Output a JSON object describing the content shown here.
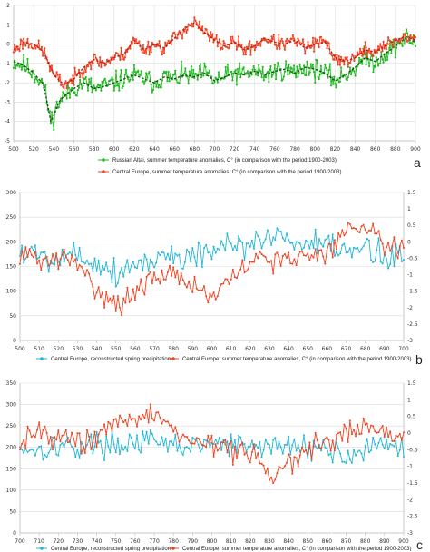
{
  "colors": {
    "green": "#22bb22",
    "orange": "#ee4422",
    "cyan": "#22b7d6",
    "grid": "#d9d9d9",
    "axis": "#bdbdbd",
    "dark_smooth": "#1a4d1a",
    "red_smooth": "#c81414"
  },
  "chart_data": [
    {
      "type": "line",
      "panel_label": "a",
      "x_ticks": [
        "500",
        "520",
        "540",
        "560",
        "580",
        "600",
        "620",
        "640",
        "660",
        "680",
        "700",
        "720",
        "740",
        "760",
        "780",
        "800",
        "820",
        "840",
        "860",
        "880",
        "900"
      ],
      "xlim": [
        500,
        900
      ],
      "ylim": [
        -5,
        2
      ],
      "y_ticks": [
        "-5",
        "-4",
        "-3",
        "-2",
        "-1",
        "0",
        "1",
        "2"
      ],
      "grid": true,
      "series": [
        {
          "name": "Russian Altai, summer temperature anomalies, C° (in comparison with the period 1900-2003)",
          "color": "#22bb22",
          "anchors": [
            [
              500,
              -0.9
            ],
            [
              510,
              -1.1
            ],
            [
              520,
              -1.5
            ],
            [
              530,
              -2.1
            ],
            [
              537,
              -4.0
            ],
            [
              540,
              -3.7
            ],
            [
              545,
              -3.0
            ],
            [
              550,
              -2.7
            ],
            [
              560,
              -2.3
            ],
            [
              570,
              -2.0
            ],
            [
              580,
              -2.3
            ],
            [
              590,
              -2.2
            ],
            [
              600,
              -2.0
            ],
            [
              610,
              -1.8
            ],
            [
              620,
              -1.6
            ],
            [
              630,
              -1.8
            ],
            [
              640,
              -2.0
            ],
            [
              650,
              -1.7
            ],
            [
              660,
              -1.8
            ],
            [
              670,
              -1.6
            ],
            [
              680,
              -1.7
            ],
            [
              690,
              -1.5
            ],
            [
              700,
              -1.9
            ],
            [
              710,
              -1.7
            ],
            [
              720,
              -1.5
            ],
            [
              730,
              -1.6
            ],
            [
              740,
              -1.4
            ],
            [
              750,
              -1.6
            ],
            [
              760,
              -1.4
            ],
            [
              770,
              -1.3
            ],
            [
              780,
              -1.5
            ],
            [
              790,
              -1.2
            ],
            [
              800,
              -1.3
            ],
            [
              810,
              -1.5
            ],
            [
              820,
              -1.9
            ],
            [
              830,
              -1.6
            ],
            [
              840,
              -1.2
            ],
            [
              850,
              -0.7
            ],
            [
              860,
              -0.9
            ],
            [
              870,
              -0.5
            ],
            [
              880,
              -0.1
            ],
            [
              890,
              0.3
            ],
            [
              900,
              0.1
            ]
          ],
          "noise": 0.8,
          "seed": 11,
          "smooth": {
            "name": "",
            "color": "#1a4d1a"
          }
        },
        {
          "name": "Central Europe, summer temperature anomalies, C° (in comparison with the period 1900-2003)",
          "color": "#ee4422",
          "anchors": [
            [
              500,
              -0.3
            ],
            [
              510,
              0.1
            ],
            [
              520,
              0.0
            ],
            [
              530,
              -0.4
            ],
            [
              540,
              -1.6
            ],
            [
              550,
              -2.1
            ],
            [
              560,
              -1.8
            ],
            [
              570,
              -1.2
            ],
            [
              580,
              -0.8
            ],
            [
              590,
              -1.0
            ],
            [
              600,
              -0.7
            ],
            [
              610,
              -0.5
            ],
            [
              620,
              0.2
            ],
            [
              630,
              -0.3
            ],
            [
              640,
              0.0
            ],
            [
              650,
              -0.2
            ],
            [
              660,
              0.3
            ],
            [
              670,
              0.8
            ],
            [
              680,
              1.1
            ],
            [
              690,
              0.6
            ],
            [
              700,
              0.2
            ],
            [
              710,
              -0.1
            ],
            [
              720,
              0.1
            ],
            [
              730,
              -0.3
            ],
            [
              740,
              -0.1
            ],
            [
              750,
              0.3
            ],
            [
              760,
              0.1
            ],
            [
              770,
              0.0
            ],
            [
              780,
              0.2
            ],
            [
              790,
              -0.2
            ],
            [
              800,
              0.0
            ],
            [
              810,
              0.1
            ],
            [
              820,
              -0.7
            ],
            [
              830,
              -0.9
            ],
            [
              840,
              -0.7
            ],
            [
              850,
              -0.3
            ],
            [
              860,
              -0.4
            ],
            [
              870,
              -0.1
            ],
            [
              880,
              0.2
            ],
            [
              890,
              0.4
            ],
            [
              900,
              0.2
            ]
          ],
          "noise": 0.55,
          "seed": 23,
          "smooth": {
            "name": "",
            "color": "#c81414"
          }
        }
      ]
    },
    {
      "type": "line",
      "panel_label": "b",
      "x_ticks": [
        "500",
        "510",
        "520",
        "530",
        "540",
        "550",
        "560",
        "570",
        "580",
        "590",
        "600",
        "610",
        "620",
        "630",
        "640",
        "650",
        "660",
        "670",
        "680",
        "690",
        "700"
      ],
      "xlim": [
        500,
        700
      ],
      "ylim_left": [
        0,
        300
      ],
      "y_ticks_left": [
        "0",
        "50",
        "100",
        "150",
        "200",
        "250",
        "300"
      ],
      "ylim_right": [
        -3,
        1.5
      ],
      "y_ticks_right": [
        "-3",
        "-2.5",
        "-2",
        "-1.5",
        "-1",
        "-0.5",
        "0",
        "0.5",
        "1",
        "1.5"
      ],
      "grid": true,
      "series": [
        {
          "name": "Central Europe, reconstructed spring precipitation",
          "color": "#22b7d6",
          "axis": "left",
          "anchors": [
            [
              500,
              180
            ],
            [
              510,
              175
            ],
            [
              520,
              170
            ],
            [
              530,
              175
            ],
            [
              540,
              160
            ],
            [
              550,
              135
            ],
            [
              560,
              155
            ],
            [
              570,
              165
            ],
            [
              580,
              170
            ],
            [
              590,
              175
            ],
            [
              600,
              180
            ],
            [
              610,
              185
            ],
            [
              620,
              195
            ],
            [
              630,
              215
            ],
            [
              640,
              205
            ],
            [
              650,
              195
            ],
            [
              660,
              185
            ],
            [
              670,
              180
            ],
            [
              680,
              185
            ],
            [
              690,
              175
            ],
            [
              700,
              170
            ]
          ],
          "noise": 45,
          "seed": 5
        },
        {
          "name": "Central Europe, summer temperature anomalies, C° (in comparison with the period 1900-2003)",
          "color": "#ee4422",
          "axis": "right",
          "anchors": [
            [
              500,
              -0.3
            ],
            [
              510,
              -0.6
            ],
            [
              520,
              -0.5
            ],
            [
              530,
              -0.7
            ],
            [
              540,
              -1.4
            ],
            [
              550,
              -1.9
            ],
            [
              560,
              -1.6
            ],
            [
              570,
              -1.1
            ],
            [
              580,
              -0.9
            ],
            [
              590,
              -1.3
            ],
            [
              600,
              -1.7
            ],
            [
              610,
              -1.2
            ],
            [
              620,
              -0.6
            ],
            [
              630,
              -0.5
            ],
            [
              640,
              -0.6
            ],
            [
              650,
              -0.4
            ],
            [
              660,
              -0.3
            ],
            [
              670,
              0.3
            ],
            [
              680,
              0.6
            ],
            [
              690,
              0.0
            ],
            [
              700,
              -0.3
            ]
          ],
          "noise": 0.5,
          "seed": 31
        }
      ]
    },
    {
      "type": "line",
      "panel_label": "c",
      "x_ticks": [
        "700",
        "710",
        "720",
        "730",
        "740",
        "750",
        "760",
        "770",
        "780",
        "790",
        "800",
        "810",
        "820",
        "830",
        "840",
        "850",
        "860",
        "870",
        "880",
        "890",
        "900"
      ],
      "xlim": [
        700,
        900
      ],
      "ylim_left": [
        0,
        350
      ],
      "y_ticks_left": [
        "0",
        "50",
        "100",
        "150",
        "200",
        "250",
        "300",
        "350"
      ],
      "ylim_right": [
        -3,
        1.5
      ],
      "y_ticks_right": [
        "-3",
        "-2.5",
        "-2",
        "-1.5",
        "-1",
        "-0.5",
        "0",
        "0.5",
        "1",
        "1.5"
      ],
      "grid": true,
      "series": [
        {
          "name": "Central Europe, reconstructed spring precipitation",
          "color": "#22b7d6",
          "axis": "left",
          "anchors": [
            [
              700,
              200
            ],
            [
              710,
              195
            ],
            [
              720,
              205
            ],
            [
              730,
              200
            ],
            [
              740,
              210
            ],
            [
              750,
              205
            ],
            [
              760,
              215
            ],
            [
              770,
              210
            ],
            [
              780,
              205
            ],
            [
              790,
              200
            ],
            [
              800,
              210
            ],
            [
              810,
              205
            ],
            [
              820,
              200
            ],
            [
              830,
              205
            ],
            [
              840,
              200
            ],
            [
              850,
              205
            ],
            [
              860,
              195
            ],
            [
              870,
              180
            ],
            [
              880,
              195
            ],
            [
              890,
              200
            ],
            [
              900,
              205
            ]
          ],
          "noise": 42,
          "seed": 17
        },
        {
          "name": "Central Europe, summer temperature anomalies, C° (in comparison with the period 1900-2003)",
          "color": "#ee4422",
          "axis": "right",
          "anchors": [
            [
              700,
              -0.2
            ],
            [
              710,
              0.1
            ],
            [
              720,
              -0.1
            ],
            [
              730,
              -0.3
            ],
            [
              740,
              -0.1
            ],
            [
              750,
              0.2
            ],
            [
              760,
              0.4
            ],
            [
              770,
              0.6
            ],
            [
              780,
              0.1
            ],
            [
              790,
              -0.2
            ],
            [
              800,
              -0.3
            ],
            [
              810,
              -0.5
            ],
            [
              820,
              -0.6
            ],
            [
              830,
              -1.3
            ],
            [
              840,
              -0.9
            ],
            [
              850,
              -0.6
            ],
            [
              860,
              -0.3
            ],
            [
              870,
              0.0
            ],
            [
              880,
              0.2
            ],
            [
              890,
              0.0
            ],
            [
              900,
              -0.2
            ]
          ],
          "noise": 0.55,
          "seed": 43
        }
      ]
    }
  ]
}
